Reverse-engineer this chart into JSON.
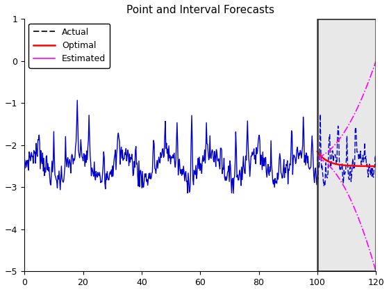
{
  "title": "Point and Interval Forecasts",
  "xlim": [
    0,
    120
  ],
  "ylim": [
    -5,
    1
  ],
  "xticks": [
    0,
    20,
    40,
    60,
    80,
    100,
    120
  ],
  "yticks": [
    -5,
    -4,
    -3,
    -2,
    -1,
    0,
    1
  ],
  "forecast_start": 100,
  "actual_color": "#0000CD",
  "optimal_color": "#FF0000",
  "estimated_color": "#FF00FF",
  "shade_color": "#E8E8E8",
  "shade_alpha": 1.0,
  "legend_actual_color": "#000000",
  "legend_labels": [
    "Actual",
    "Optimal",
    "Estimated"
  ],
  "figsize": [
    5.6,
    4.2
  ],
  "dpi": 100,
  "title_fontsize": 11,
  "tick_labelsize": 9,
  "legend_fontsize": 9,
  "hist_n": 500,
  "fore_n": 100,
  "seed": 7
}
